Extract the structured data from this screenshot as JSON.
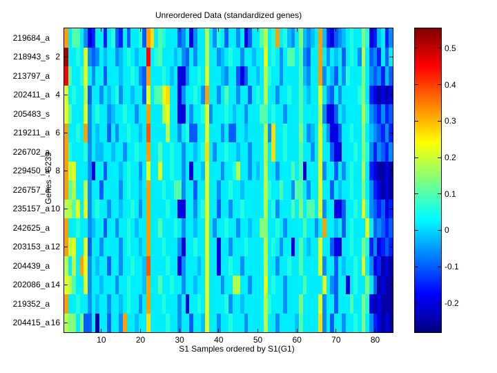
{
  "chart_data": {
    "type": "heatmap",
    "title": "Unreordered Data (standardized genes)",
    "xlabel": "S1 Samples ordered by S1(G1)",
    "ylabel": "Genes - G239",
    "n_rows": 16,
    "n_cols": 84,
    "row_labels": [
      "219684_a",
      "218943_s",
      "213797_a",
      "202411_a",
      "205483_s",
      "219211_a",
      "226702_a",
      "229450_a",
      "226757_a",
      "235157_a",
      "242625_a",
      "203153_a",
      "204439_a",
      "202086_a",
      "219352_a",
      "204415_a"
    ],
    "y_ticks": [
      2,
      4,
      6,
      8,
      10,
      12,
      14,
      16
    ],
    "x_ticks": [
      10,
      20,
      30,
      40,
      50,
      60,
      70,
      80
    ],
    "grid": false,
    "legend_position": "colorbar-right",
    "colormap": "jet",
    "color_axis_min": -0.28,
    "color_axis_max": 0.555,
    "colorbar_tick_values": [
      0.5,
      0.4,
      0.3,
      0.2,
      0.1,
      0,
      -0.1,
      -0.2
    ],
    "colorbar_tick_labels": [
      "0.5",
      "0.4",
      "0.3",
      "0.2",
      "0.1",
      "0",
      "-0.1",
      "-0.2"
    ],
    "value_key": {
      "a": -0.25,
      "b": -0.2,
      "c": -0.15,
      "d": -0.1,
      "e": -0.06,
      "f": -0.02,
      "g": 0.02,
      "h": 0.06,
      "i": 0.1,
      "j": 0.14,
      "k": 0.18,
      "l": 0.22,
      "m": 0.27,
      "n": 0.32,
      "o": 0.38,
      "p": 0.45,
      "q": 0.52
    },
    "values_encoded": [
      "ngiigebcggcghdcgdgghdnmgihgggdegbeggkgehgdggegbdggikghnghfegjfefgnfcbdefghggjhbcfgce",
      "qgghgledegfggefghgfggpghigggfgedgeggkggefghggeggfgglghgegiigiedggngegfgdghgekgdecgdg",
      "pigghlgeggdgggfgghgednggghgfgbbegghglgggfeggdbdggfgkhggeggggifeggnegfdgehgggjgedecfd",
      "lghggkdggegfgheggfggdlgiilmggbegghgenggegiggeggdghgkggegghggigfgglgedgegggghjgcbabab",
      "ligggleghggefgghggeggngggklggbbgegghleggghgfggegggiighggegggiggggkebbdgfggggkhedcecd",
      "ngghgnegfggdgegghggfgoggggkggeghddgglgggegddggfggggkemgghgggjgefglgebbdgghggjgfedcec",
      "nhggghegffggfggegghggnggigghggeggfghmgegghggfggegggkgmgghgggiggeglggdbbggghgjhecedce",
      "nklgggebggdgggfghggeglgglgghggegbggflgggegghkggegfgkggegggigibgggleggdgeghggkgcbaaba",
      "nikggkeggdggggeghggfgnggghggiieggdgglggegghggfgggggkhggiggeiigegglggdgfgghggjgecbaba",
      "kkilgleghggeggfgghgegngggghggbbggeghlggdggegghgggggkghegggigjgiigleggbbdgghglhedcdbc",
      "ngghggefggdggegghgfggnggiggghgeggfgglgegghggeggfggjjgghgeggggiggegnggfgdghggglgdedcdb",
      "nklggldggeggggeghggfgnggghgggebgghgglggbggeggghggggkghgeggbgigfgglggdbbgghggjhcebcdc",
      "kgkgnlegfggdggegghggfogggghggbegggfglggbgghggegggggkggegghggiggggleggdgfgghglgebcaba",
      "lkiggleggfgggegghgggfnggigghggeggfgglgggeggkkggeggglghggeggggigggglgedggbghggjgdabaab",
      "ngghggegfggeggfghggegnggghgggegbgghglggggheggfgggggkhgggegggjggggleggdgggiggjhbabaaa",
      "kjjgjddgaggdggenggfggmgggghggeggdggflggegghgggeggggkggeggggfiggggmegdggegghgjgecbaba"
    ]
  }
}
